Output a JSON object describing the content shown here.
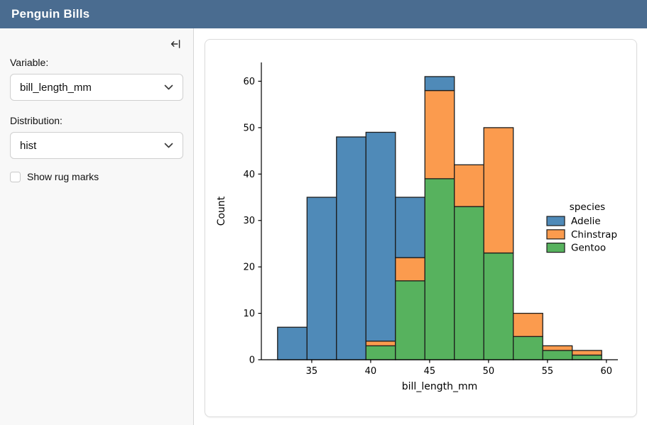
{
  "header": {
    "title": "Penguin Bills"
  },
  "sidebar": {
    "collapse_icon": "collapse-sidebar-left",
    "variable": {
      "label": "Variable:",
      "value": "bill_length_mm"
    },
    "distribution": {
      "label": "Distribution:",
      "value": "hist"
    },
    "rug_checkbox": {
      "label": "Show rug marks",
      "checked": false
    }
  },
  "colors": {
    "header_bg": "#4a6c90",
    "sidebar_bg": "#f8f8f8",
    "adelie_blue": "#4f8ab8",
    "chinstrap_orange": "#fb9b4e",
    "gentoo_green": "#57b25e"
  },
  "chart_data": {
    "type": "bar",
    "subtype": "stacked-histogram",
    "title": "",
    "xlabel": "bill_length_mm",
    "ylabel": "Count",
    "bin_start": 32.1,
    "bin_width": 2.5,
    "bin_edges": [
      32.1,
      34.6,
      37.1,
      39.6,
      42.1,
      44.6,
      47.1,
      49.6,
      52.1,
      54.6,
      57.1,
      59.6
    ],
    "x_ticks": [
      35,
      40,
      45,
      50,
      55,
      60
    ],
    "y_ticks": [
      0,
      10,
      20,
      30,
      40,
      50,
      60
    ],
    "xlim": [
      30.725,
      60.975
    ],
    "ylim": [
      0,
      64.05
    ],
    "grid": false,
    "edge_color": "#1c1c1c",
    "stack_order_bottom_to_top": [
      "Gentoo",
      "Chinstrap",
      "Adelie"
    ],
    "series": [
      {
        "name": "Adelie",
        "color": "#4f8ab8",
        "values": [
          7,
          35,
          48,
          45,
          13,
          3,
          0,
          0,
          0,
          0,
          0
        ]
      },
      {
        "name": "Chinstrap",
        "color": "#fb9b4e",
        "values": [
          0,
          0,
          0,
          1,
          5,
          19,
          9,
          27,
          5,
          1,
          1
        ]
      },
      {
        "name": "Gentoo",
        "color": "#57b25e",
        "values": [
          0,
          0,
          0,
          3,
          17,
          39,
          33,
          23,
          5,
          2,
          1
        ]
      }
    ],
    "bin_totals": [
      7,
      35,
      48,
      49,
      35,
      61,
      42,
      50,
      10,
      3,
      2
    ],
    "legend": {
      "title": "species",
      "position": "center-right",
      "entries": [
        "Adelie",
        "Chinstrap",
        "Gentoo"
      ]
    }
  }
}
